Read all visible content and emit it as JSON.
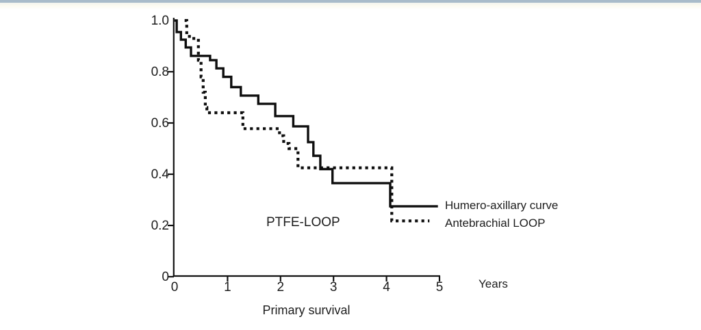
{
  "page": {
    "top_bar_color": "#a9bcca",
    "ink_color": "#111111",
    "background_color": "#ffffff"
  },
  "chart_data": {
    "type": "line",
    "subtype": "kaplan-meier-step",
    "title": "",
    "xlabel": "Primary survival",
    "x_unit_label": "Years",
    "ylabel": "",
    "annotation": "PTFE-LOOP",
    "xlim": [
      0,
      5
    ],
    "ylim": [
      0,
      1
    ],
    "grid": false,
    "legend_position": "right-of-curve-ends",
    "x_ticks": [
      {
        "label": "0",
        "value": 0,
        "tick": false
      },
      {
        "label": "1",
        "value": 1,
        "tick": true
      },
      {
        "label": "2",
        "value": 2,
        "tick": true
      },
      {
        "label": "3",
        "value": 3,
        "tick": true
      },
      {
        "label": "4",
        "value": 4,
        "tick": true
      },
      {
        "label": "5",
        "value": 5,
        "tick": true
      }
    ],
    "y_ticks": [
      {
        "label": "1.0",
        "value": 1.0,
        "tick": false
      },
      {
        "label": "0.8",
        "value": 0.8,
        "tick": true
      },
      {
        "label": "0.6",
        "value": 0.6,
        "tick": true
      },
      {
        "label": "0.4",
        "value": 0.4,
        "tick": true
      },
      {
        "label": "0.2",
        "value": 0.2,
        "tick": true
      },
      {
        "label": "0",
        "value": 0.0,
        "tick": true
      }
    ],
    "series": [
      {
        "name": "Humero-axillary curve",
        "style": "solid",
        "color": "#0e0e0e",
        "end_x": 4.97,
        "points": [
          [
            0.0,
            1.0
          ],
          [
            0.04,
            0.955
          ],
          [
            0.12,
            0.925
          ],
          [
            0.21,
            0.895
          ],
          [
            0.31,
            0.862
          ],
          [
            0.67,
            0.845
          ],
          [
            0.79,
            0.813
          ],
          [
            0.92,
            0.78
          ],
          [
            1.07,
            0.74
          ],
          [
            1.25,
            0.707
          ],
          [
            1.58,
            0.675
          ],
          [
            1.9,
            0.627
          ],
          [
            2.24,
            0.587
          ],
          [
            2.52,
            0.525
          ],
          [
            2.62,
            0.472
          ],
          [
            2.75,
            0.42
          ],
          [
            2.98,
            0.365
          ],
          [
            4.07,
            0.275
          ]
        ]
      },
      {
        "name": "Antebrachial LOOP",
        "style": "dotted",
        "color": "#0e0e0e",
        "end_x": 4.81,
        "points": [
          [
            0.19,
            1.0
          ],
          [
            0.23,
            0.945
          ],
          [
            0.28,
            0.93
          ],
          [
            0.45,
            0.845
          ],
          [
            0.5,
            0.78
          ],
          [
            0.54,
            0.72
          ],
          [
            0.58,
            0.66
          ],
          [
            0.61,
            0.64
          ],
          [
            1.29,
            0.578
          ],
          [
            1.98,
            0.55
          ],
          [
            2.06,
            0.52
          ],
          [
            2.16,
            0.5
          ],
          [
            2.33,
            0.425
          ],
          [
            4.1,
            0.218
          ]
        ]
      }
    ]
  }
}
